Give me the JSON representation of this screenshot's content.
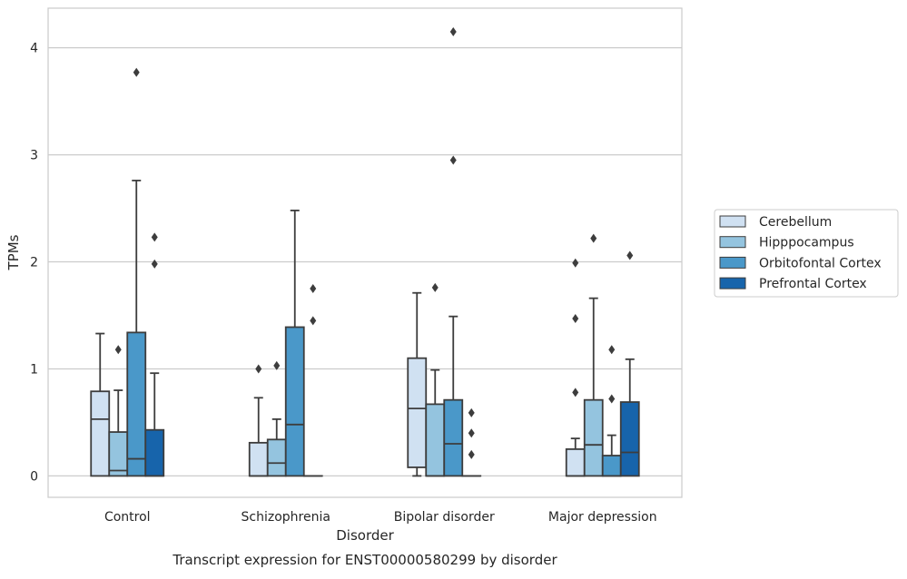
{
  "chart_data": {
    "type": "box",
    "title": "Transcript expression for ENST00000580299 by disorder",
    "xlabel": "Disorder",
    "ylabel": "TPMs",
    "ylim": [
      -0.2,
      4.37
    ],
    "yticks": [
      0,
      1,
      2,
      3,
      4
    ],
    "grid": "horizontal",
    "legend_position": "right",
    "categories": [
      "Control",
      "Schizophrenia",
      "Bipolar disorder",
      "Major depression"
    ],
    "series": [
      {
        "name": "Cerebellum",
        "color": "#d0e1f2",
        "boxes": [
          {
            "min": 0.0,
            "q1": 0.0,
            "median": 0.53,
            "q3": 0.79,
            "max": 1.33,
            "outliers": []
          },
          {
            "min": 0.0,
            "q1": 0.0,
            "median": 0.0,
            "q3": 0.31,
            "max": 0.73,
            "outliers": [
              1.0
            ]
          },
          {
            "min": 0.0,
            "q1": 0.08,
            "median": 0.63,
            "q3": 1.1,
            "max": 1.71,
            "outliers": []
          },
          {
            "min": 0.0,
            "q1": 0.0,
            "median": 0.0,
            "q3": 0.25,
            "max": 0.35,
            "outliers": [
              0.78,
              1.47,
              1.99
            ]
          }
        ]
      },
      {
        "name": "Hipppocampus",
        "color": "#94c4df",
        "boxes": [
          {
            "min": 0.0,
            "q1": 0.0,
            "median": 0.05,
            "q3": 0.41,
            "max": 0.8,
            "outliers": [
              1.18
            ]
          },
          {
            "min": 0.0,
            "q1": 0.0,
            "median": 0.12,
            "q3": 0.34,
            "max": 0.53,
            "outliers": [
              1.03
            ]
          },
          {
            "min": 0.0,
            "q1": 0.0,
            "median": 0.0,
            "q3": 0.67,
            "max": 0.99,
            "outliers": [
              1.76
            ]
          },
          {
            "min": 0.0,
            "q1": 0.0,
            "median": 0.29,
            "q3": 0.71,
            "max": 1.66,
            "outliers": [
              2.22
            ]
          }
        ]
      },
      {
        "name": "Orbitofontal Cortex",
        "color": "#4a98c9",
        "boxes": [
          {
            "min": 0.0,
            "q1": 0.0,
            "median": 0.16,
            "q3": 1.34,
            "max": 2.76,
            "outliers": [
              3.77
            ]
          },
          {
            "min": 0.0,
            "q1": 0.0,
            "median": 0.48,
            "q3": 1.39,
            "max": 2.48,
            "outliers": []
          },
          {
            "min": 0.0,
            "q1": 0.0,
            "median": 0.3,
            "q3": 0.71,
            "max": 1.49,
            "outliers": [
              2.95,
              4.15
            ]
          },
          {
            "min": 0.0,
            "q1": 0.0,
            "median": 0.0,
            "q3": 0.19,
            "max": 0.38,
            "outliers": [
              0.72,
              1.18
            ]
          }
        ]
      },
      {
        "name": "Prefrontal Cortex",
        "color": "#1764ab",
        "boxes": [
          {
            "min": 0.0,
            "q1": 0.0,
            "median": 0.0,
            "q3": 0.43,
            "max": 0.96,
            "outliers": [
              1.98,
              2.23
            ]
          },
          {
            "min": 0.0,
            "q1": 0.0,
            "median": 0.0,
            "q3": 0.0,
            "max": 0.0,
            "outliers": [
              1.45,
              1.75
            ]
          },
          {
            "min": 0.0,
            "q1": 0.0,
            "median": 0.0,
            "q3": 0.0,
            "max": 0.0,
            "outliers": [
              0.2,
              0.4,
              0.59
            ]
          },
          {
            "min": 0.0,
            "q1": 0.0,
            "median": 0.22,
            "q3": 0.69,
            "max": 1.09,
            "outliers": [
              2.06
            ]
          }
        ]
      }
    ]
  }
}
